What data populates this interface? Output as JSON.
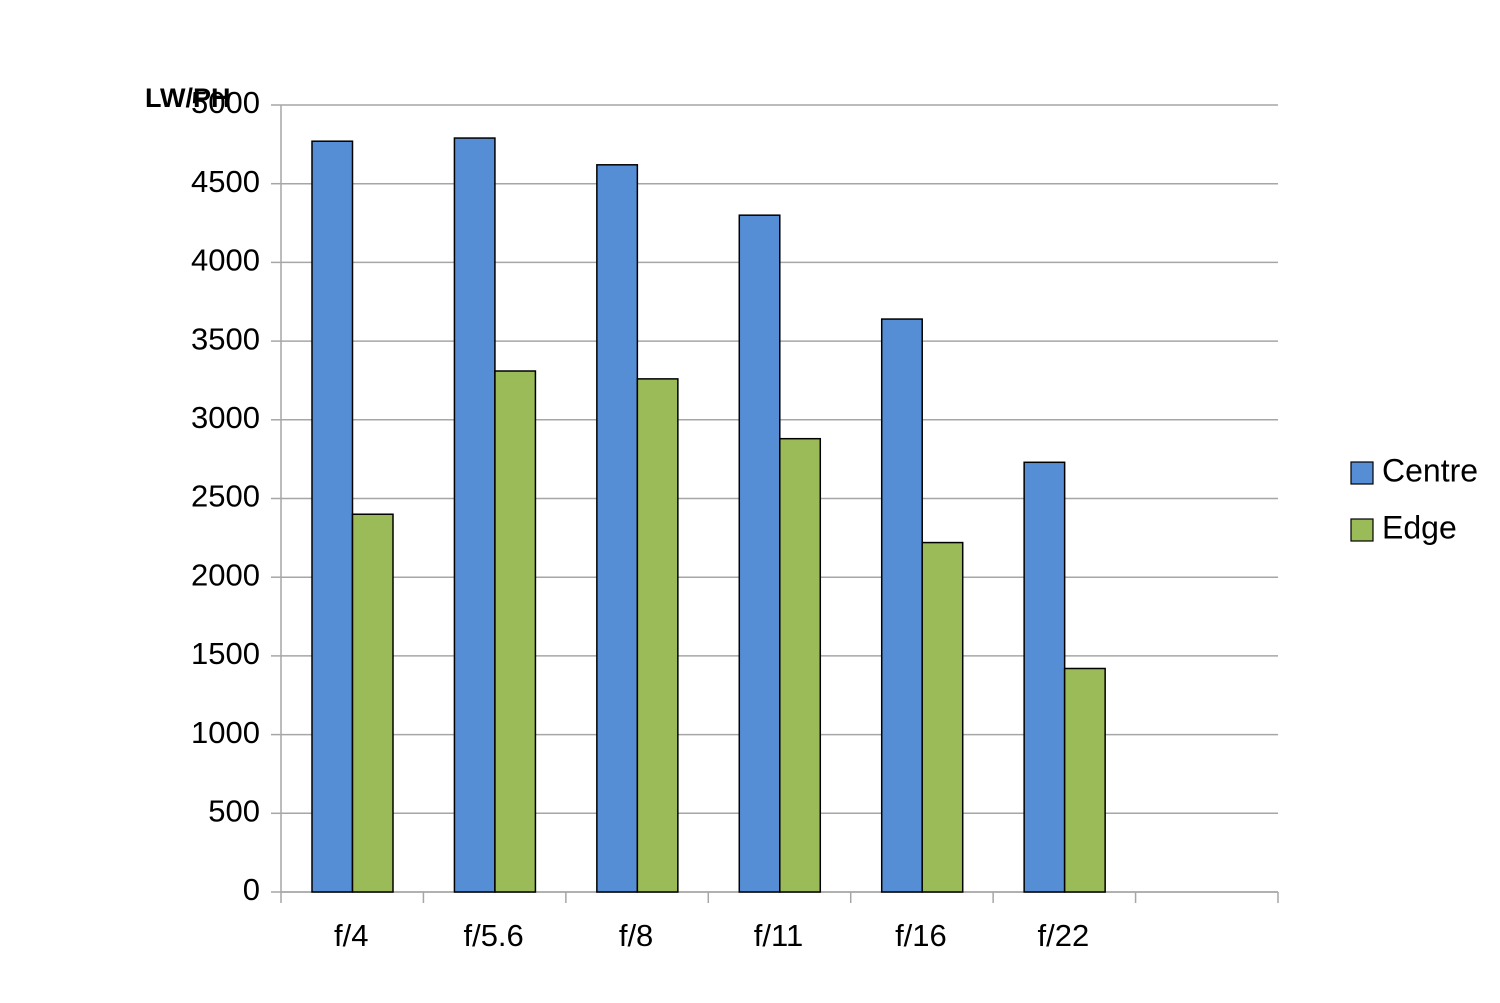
{
  "chart_data": {
    "type": "bar",
    "y_label": "LW/PH",
    "categories": [
      "f/4",
      "f/5.6",
      "f/8",
      "f/11",
      "f/16",
      "f/22",
      null
    ],
    "series": [
      {
        "name": "Centre",
        "color": "#558ed5",
        "values": [
          4770,
          4790,
          4620,
          4300,
          3640,
          2730,
          null
        ]
      },
      {
        "name": "Edge",
        "color": "#9bbb59",
        "values": [
          2400,
          3310,
          3260,
          2880,
          2220,
          1420,
          null
        ]
      }
    ],
    "ylim": [
      0,
      5000
    ],
    "yticks": [
      0,
      500,
      1000,
      1500,
      2000,
      2500,
      3000,
      3500,
      4000,
      4500,
      5000
    ],
    "grid": true,
    "legend": "right"
  }
}
